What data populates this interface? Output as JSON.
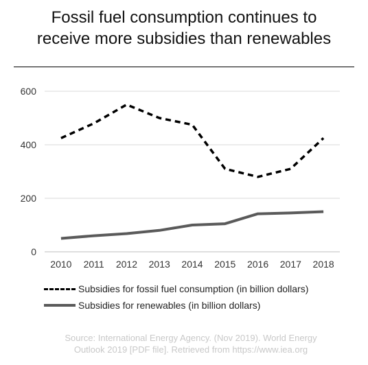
{
  "title_line1": "Fossil fuel consumption continues to",
  "title_line2": "receive more subsidies than renewables",
  "source_line1": "Source: International Energy Agency. (Nov 2019). World Energy",
  "source_line2": "Outlook 2019 [PDF file]. Retrieved from https://www.iea.org",
  "chart_data": {
    "type": "line",
    "title": "Fossil fuel consumption continues to receive more subsidies than renewables",
    "x": [
      "2010",
      "2011",
      "2012",
      "2013",
      "2014",
      "2015",
      "2016",
      "2017",
      "2018"
    ],
    "ylim": [
      0,
      600
    ],
    "yticks": [
      0,
      200,
      400,
      600
    ],
    "grid": true,
    "legend_position": "bottom",
    "series": [
      {
        "name": "Subsidies for fossil fuel consumption (in billion dollars)",
        "values": [
          425,
          480,
          550,
          500,
          475,
          310,
          280,
          310,
          425
        ],
        "style": "dashed",
        "color": "#000000"
      },
      {
        "name": "Subsidies for renewables (in billion dollars)",
        "values": [
          50,
          60,
          68,
          80,
          100,
          105,
          142,
          145,
          150
        ],
        "style": "solid",
        "color": "#5a5a5a"
      }
    ]
  }
}
